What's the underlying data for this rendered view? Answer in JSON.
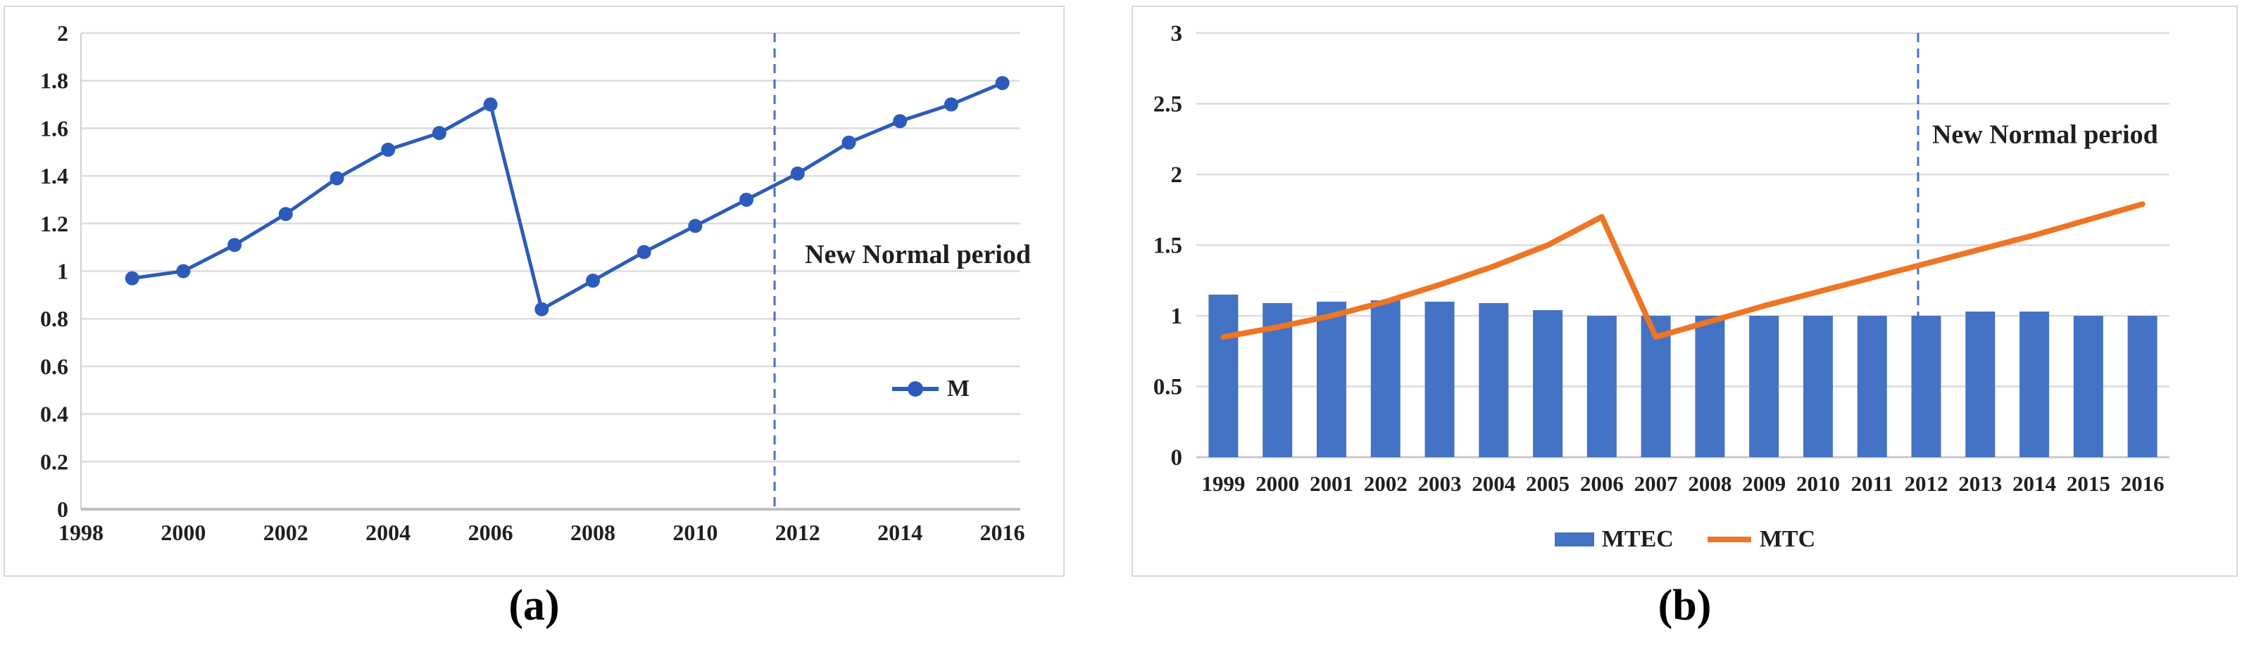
{
  "page": {
    "background": "#ffffff"
  },
  "figure": {
    "panels": [
      {
        "caption": "(a)",
        "annotation": "New Normal period"
      },
      {
        "caption": "(b)",
        "annotation": "New Normal period"
      }
    ]
  },
  "colors": {
    "line_blue": "#2d5bbb",
    "bar_blue": "#4472c4",
    "orange": "#ed7524",
    "dashed_blue": "#4472c4",
    "gridline": "#dcdcdc",
    "axis_line": "#c0c0c0",
    "tick_text": "#1f1f1f",
    "panel_border": "#d8d8d8"
  },
  "chart_data": [
    {
      "type": "line",
      "title": "",
      "xlabel": "",
      "ylabel": "",
      "x": [
        1999,
        2000,
        2001,
        2002,
        2003,
        2004,
        2005,
        2006,
        2007,
        2008,
        2009,
        2010,
        2011,
        2012,
        2013,
        2014,
        2015,
        2016
      ],
      "series": [
        {
          "name": "M",
          "color": "#2d5bbb",
          "values": [
            0.97,
            1.0,
            1.11,
            1.24,
            1.39,
            1.51,
            1.58,
            1.7,
            0.84,
            0.96,
            1.08,
            1.19,
            1.3,
            1.41,
            1.54,
            1.63,
            1.7,
            1.79
          ]
        }
      ],
      "xlim": [
        1998,
        2016.35
      ],
      "ylim": [
        0,
        2
      ],
      "y_ticks": [
        0,
        0.2,
        0.4,
        0.6,
        0.8,
        1,
        1.2,
        1.4,
        1.6,
        1.8,
        2
      ],
      "y_tick_labels": [
        "0",
        "0.2",
        "0.4",
        "0.6",
        "0.8",
        "1",
        "1.2",
        "1.4",
        "1.6",
        "1.8",
        "2"
      ],
      "x_ticks": [
        1998,
        2000,
        2002,
        2004,
        2006,
        2008,
        2010,
        2012,
        2014,
        2016
      ],
      "x_tick_labels": [
        "1998",
        "2000",
        "2002",
        "2004",
        "2006",
        "2008",
        "2010",
        "2012",
        "2014",
        "2016"
      ],
      "grid": true,
      "legend_position": "middle-right",
      "annotation": {
        "text": "New Normal period",
        "year": 2014.35,
        "value": 1.07
      },
      "reference_line": {
        "style": "vertical-dashed",
        "year": 2011.55,
        "color": "#4472c4"
      }
    },
    {
      "type": "bar+line",
      "title": "",
      "xlabel": "",
      "ylabel": "",
      "categories": [
        "1999",
        "2000",
        "2001",
        "2002",
        "2003",
        "2004",
        "2005",
        "2006",
        "2007",
        "2008",
        "2009",
        "2010",
        "2011",
        "2012",
        "2013",
        "2014",
        "2015",
        "2016"
      ],
      "series": [
        {
          "name": "MTEC",
          "type": "bar",
          "color": "#4472c4",
          "values": [
            1.15,
            1.09,
            1.1,
            1.11,
            1.1,
            1.09,
            1.04,
            1.0,
            1.0,
            1.0,
            1.0,
            1.0,
            1.0,
            1.0,
            1.03,
            1.03,
            1.0,
            1.0
          ]
        },
        {
          "name": "MTC",
          "type": "line",
          "color": "#ed7524",
          "values": [
            0.85,
            0.92,
            1.0,
            1.1,
            1.22,
            1.35,
            1.5,
            1.7,
            0.85,
            0.96,
            1.07,
            1.17,
            1.27,
            1.37,
            1.47,
            1.57,
            1.68,
            1.79
          ]
        }
      ],
      "ylim": [
        0,
        3
      ],
      "y_ticks": [
        0,
        0.5,
        1,
        1.5,
        2,
        2.5,
        3
      ],
      "y_tick_labels": [
        "0",
        "0.5",
        "1",
        "1.5",
        "2",
        "2.5",
        "3"
      ],
      "grid": true,
      "legend_position": "bottom-center",
      "annotation": {
        "text": "New Normal period",
        "slot": 15.7,
        "value": 2.28
      },
      "reference_line": {
        "style": "vertical-dashed",
        "between": [
          "2011",
          "2012"
        ],
        "slot": 13.35,
        "color": "#4472c4"
      }
    }
  ]
}
